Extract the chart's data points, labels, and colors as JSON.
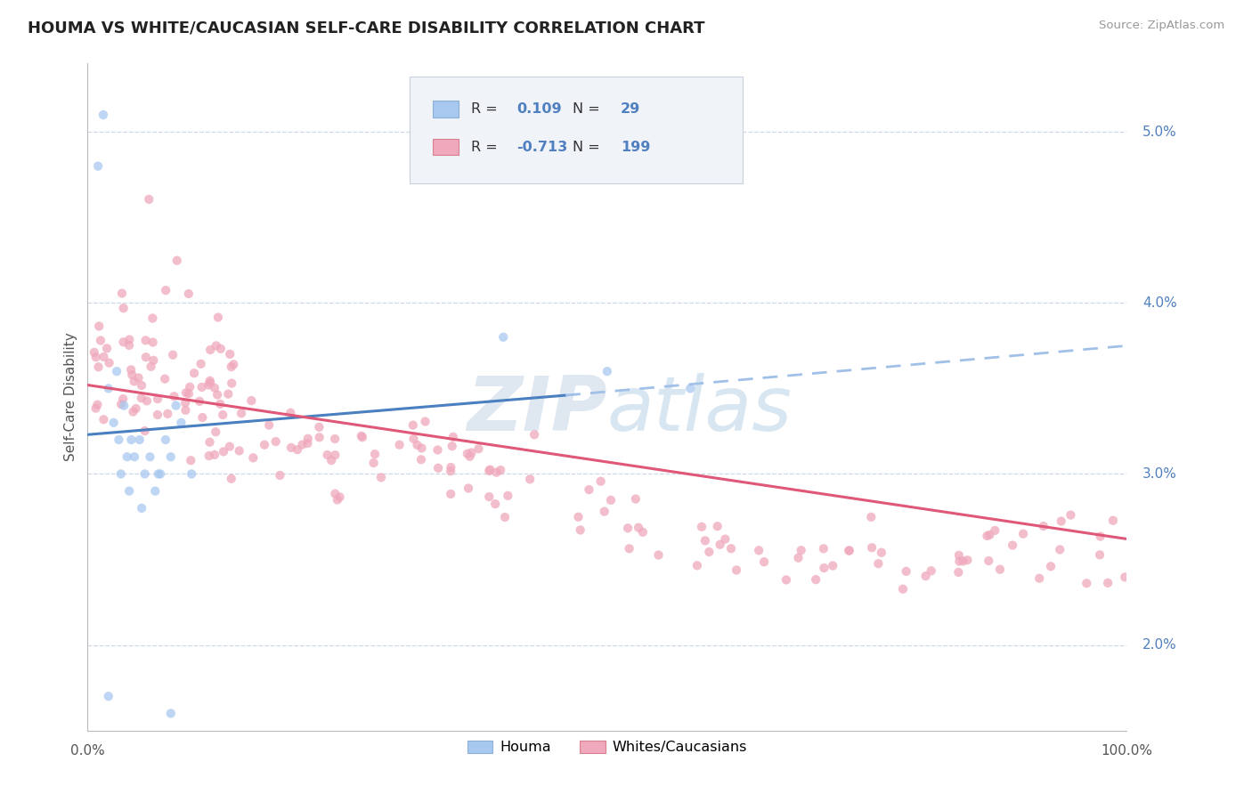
{
  "title": "HOUMA VS WHITE/CAUCASIAN SELF-CARE DISABILITY CORRELATION CHART",
  "source": "Source: ZipAtlas.com",
  "ylabel": "Self-Care Disability",
  "xlim": [
    0.0,
    100.0
  ],
  "ylim": [
    1.5,
    5.4
  ],
  "plot_ymin": 2.0,
  "plot_ymax": 5.0,
  "houma_color": "#a8c8f0",
  "whites_color": "#f0a8bc",
  "houma_line_color": "#4a7fc0",
  "whites_line_color": "#e05878",
  "dashed_line_color": "#a0b8d8",
  "houma_line_dashed_color": "#a0c0e8",
  "watermark_color": "#c8d8ec",
  "y_ticks": [
    2.0,
    3.0,
    4.0,
    5.0
  ],
  "y_tick_labels": [
    "2.0%",
    "3.0%",
    "4.0%",
    "5.0%"
  ],
  "tick_color": "#5080c0",
  "houma_R": "0.109",
  "houma_N": "29",
  "whites_R": "-0.713",
  "whites_N": "199",
  "legend_facecolor": "#f0f4f8",
  "legend_edgecolor": "#c8d0dc",
  "houma_line_start_x": 0,
  "houma_line_start_y": 3.23,
  "houma_line_solid_end_x": 46,
  "houma_line_solid_end_y": 3.46,
  "houma_line_dashed_end_x": 100,
  "houma_line_dashed_end_y": 3.75,
  "whites_line_start_x": 0,
  "whites_line_start_y": 3.52,
  "whites_line_end_x": 100,
  "whites_line_end_y": 2.62
}
